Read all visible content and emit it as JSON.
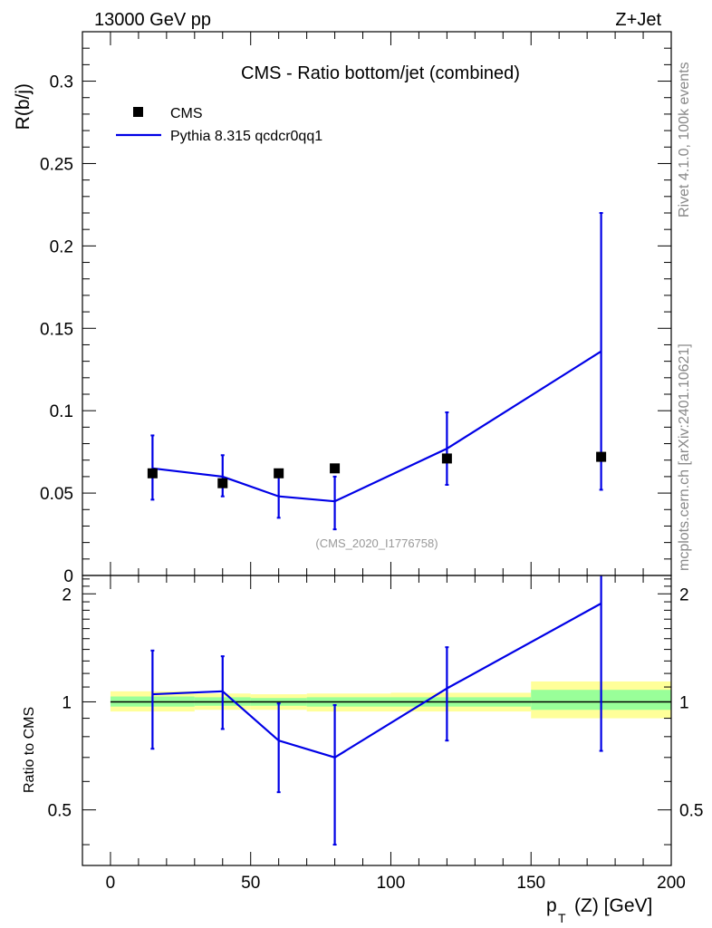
{
  "header": {
    "energy_label": "13000 GeV pp",
    "process_label": "Z+Jet"
  },
  "side_labels": {
    "rivet": "Rivet 4.1.0,  100k events",
    "mcplots": "mcplots.cern.ch [arXiv:2401.10621]"
  },
  "colors": {
    "mc_line": "#0000e6",
    "data_marker": "#000000",
    "band_outer": "#ffff99",
    "band_inner": "#99ff99",
    "id_text": "#999999"
  },
  "chart_data": [
    {
      "type": "scatter",
      "panel": "main",
      "title": "CMS - Ratio bottom/jet (combined)",
      "xlabel": "",
      "ylabel": "R(b/j)",
      "xlim": [
        -10,
        200
      ],
      "ylim": [
        0,
        0.33
      ],
      "yticks": [
        0,
        0.05,
        0.1,
        0.15,
        0.2,
        0.25,
        0.3
      ],
      "ytick_labels": [
        "0",
        "0.05",
        "0.1",
        "0.15",
        "0.2",
        "0.25",
        "0.3"
      ],
      "analysis_id": "(CMS_2020_I1776758)",
      "legend": [
        "CMS",
        "Pythia 8.315 qcdcr0qq1"
      ],
      "series": [
        {
          "name": "CMS",
          "kind": "points",
          "x": [
            15,
            40,
            60,
            80,
            120,
            175
          ],
          "y": [
            0.062,
            0.056,
            0.062,
            0.065,
            0.071,
            0.072
          ]
        },
        {
          "name": "Pythia 8.315 qcdcr0qq1",
          "kind": "line",
          "x": [
            15,
            40,
            60,
            80,
            120,
            175
          ],
          "y": [
            0.065,
            0.06,
            0.048,
            0.045,
            0.077,
            0.136
          ],
          "err_low": [
            0.046,
            0.048,
            0.035,
            0.028,
            0.055,
            0.052
          ],
          "err_high": [
            0.085,
            0.073,
            0.06,
            0.06,
            0.099,
            0.22
          ]
        }
      ]
    },
    {
      "type": "line",
      "panel": "ratio",
      "xlabel": "p_T (Z) [GeV]",
      "ylabel": "Ratio to CMS",
      "xlim": [
        -10,
        200
      ],
      "ylim": [
        0.35,
        2.25
      ],
      "ylog": true,
      "xticks": [
        0,
        50,
        100,
        150,
        200
      ],
      "xtick_labels": [
        "0",
        "50",
        "100",
        "150",
        "200"
      ],
      "yticks": [
        0.5,
        1,
        2
      ],
      "ytick_labels": [
        "0.5",
        "1",
        "2"
      ],
      "bands": [
        {
          "x0": 0,
          "x1": 30,
          "outer": [
            0.94,
            1.07
          ],
          "inner": [
            0.97,
            1.035
          ]
        },
        {
          "x0": 30,
          "x1": 50,
          "outer": [
            0.95,
            1.055
          ],
          "inner": [
            0.975,
            1.03
          ]
        },
        {
          "x0": 50,
          "x1": 70,
          "outer": [
            0.95,
            1.05
          ],
          "inner": [
            0.975,
            1.025
          ]
        },
        {
          "x0": 70,
          "x1": 100,
          "outer": [
            0.94,
            1.055
          ],
          "inner": [
            0.97,
            1.03
          ]
        },
        {
          "x0": 100,
          "x1": 150,
          "outer": [
            0.94,
            1.06
          ],
          "inner": [
            0.97,
            1.03
          ]
        },
        {
          "x0": 150,
          "x1": 200,
          "outer": [
            0.9,
            1.14
          ],
          "inner": [
            0.95,
            1.08
          ]
        }
      ],
      "series": [
        {
          "name": "Pythia 8.315 qcdcr0qq1",
          "x": [
            15,
            40,
            60,
            80,
            120,
            175
          ],
          "y": [
            1.05,
            1.07,
            0.78,
            0.7,
            1.09,
            1.88
          ],
          "err_low": [
            0.74,
            0.84,
            0.56,
            0.4,
            0.78,
            0.73
          ],
          "err_high": [
            1.39,
            1.34,
            0.99,
            0.98,
            1.42,
            2.25
          ]
        }
      ]
    }
  ]
}
